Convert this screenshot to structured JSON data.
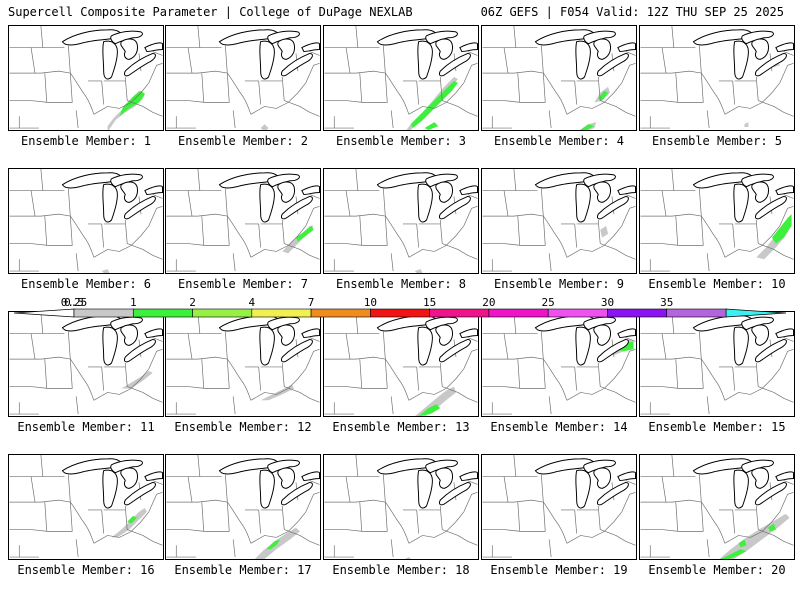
{
  "header": {
    "title": "Supercell Composite Parameter | College of DuPage NEXLAB",
    "valid": "06Z GEFS | F054 Valid: 12Z THU SEP 25 2025"
  },
  "colors": {
    "gray": "#c8c8c8",
    "green": "#3cf03c",
    "border": "#000000",
    "state": "#707070"
  },
  "legend": {
    "label_left": "0.25",
    "label_right": "35",
    "bins": [
      {
        "lo": "0.5",
        "color": "#c8c8c8"
      },
      {
        "lo": "1",
        "color": "#3cf03c"
      },
      {
        "lo": "2",
        "color": "#96f046"
      },
      {
        "lo": "4",
        "color": "#f0f050"
      },
      {
        "lo": "7",
        "color": "#f08c1e"
      },
      {
        "lo": "10",
        "color": "#f01414"
      },
      {
        "lo": "15",
        "color": "#f0148c"
      },
      {
        "lo": "20",
        "color": "#f014c8"
      },
      {
        "lo": "25",
        "color": "#f050f0"
      },
      {
        "lo": "30",
        "color": "#8c14f0"
      },
      {
        "lo": "35",
        "color": "#b464dc"
      }
    ],
    "cap_left_color": "#ffffff",
    "cap_right_color": "#3cf0f0"
  },
  "members": [
    {
      "label": "Ensemble Member: 1",
      "shading": [
        {
          "lvl": "gray",
          "pts": [
            [
              100,
              108
            ],
            [
              108,
              96
            ],
            [
              118,
              88
            ],
            [
              128,
              82
            ],
            [
              136,
              74
            ],
            [
              138,
              68
            ],
            [
              132,
              66
            ],
            [
              124,
              74
            ],
            [
              116,
              84
            ],
            [
              106,
              94
            ],
            [
              100,
              102
            ]
          ]
        },
        {
          "lvl": "green",
          "pts": [
            [
              112,
              92
            ],
            [
              122,
              84
            ],
            [
              132,
              78
            ],
            [
              138,
              70
            ],
            [
              134,
              66
            ],
            [
              126,
              72
            ],
            [
              116,
              82
            ]
          ]
        }
      ]
    },
    {
      "label": "Ensemble Member: 2",
      "shading": [
        {
          "lvl": "gray",
          "pts": [
            [
              96,
              104
            ],
            [
              100,
              100
            ],
            [
              104,
              104
            ],
            [
              100,
              108
            ]
          ]
        }
      ]
    },
    {
      "label": "Ensemble Member: 3",
      "shading": [
        {
          "lvl": "gray",
          "pts": [
            [
              86,
              108
            ],
            [
              98,
              96
            ],
            [
              110,
              84
            ],
            [
              120,
              72
            ],
            [
              130,
              62
            ],
            [
              136,
              54
            ],
            [
              132,
              52
            ],
            [
              122,
              62
            ],
            [
              112,
              74
            ],
            [
              100,
              88
            ],
            [
              88,
              100
            ],
            [
              82,
              108
            ]
          ]
        },
        {
          "lvl": "green",
          "pts": [
            [
              90,
              104
            ],
            [
              100,
              96
            ],
            [
              110,
              86
            ],
            [
              120,
              76
            ],
            [
              130,
              66
            ],
            [
              136,
              58
            ],
            [
              132,
              56
            ],
            [
              122,
              66
            ],
            [
              110,
              78
            ],
            [
              98,
              90
            ],
            [
              88,
              100
            ]
          ]
        },
        {
          "lvl": "green",
          "pts": [
            [
              102,
              104
            ],
            [
              112,
              98
            ],
            [
              116,
              102
            ],
            [
              106,
              106
            ]
          ]
        }
      ]
    },
    {
      "label": "Ensemble Member: 4",
      "shading": [
        {
          "lvl": "gray",
          "pts": [
            [
              96,
              108
            ],
            [
              108,
              100
            ],
            [
              116,
              98
            ],
            [
              114,
              104
            ],
            [
              104,
              108
            ]
          ]
        },
        {
          "lvl": "gray",
          "pts": [
            [
              114,
              78
            ],
            [
              120,
              68
            ],
            [
              128,
              62
            ],
            [
              130,
              68
            ],
            [
              122,
              76
            ]
          ]
        },
        {
          "lvl": "green",
          "pts": [
            [
              100,
              106
            ],
            [
              108,
              100
            ],
            [
              114,
              102
            ],
            [
              106,
              106
            ]
          ]
        },
        {
          "lvl": "green",
          "pts": [
            [
              118,
              74
            ],
            [
              124,
              66
            ],
            [
              128,
              68
            ],
            [
              122,
              76
            ]
          ]
        }
      ]
    },
    {
      "label": "Ensemble Member: 5",
      "shading": [
        {
          "lvl": "gray",
          "pts": [
            [
              134,
              38
            ],
            [
              140,
              34
            ],
            [
              142,
              40
            ],
            [
              136,
              42
            ]
          ]
        },
        {
          "lvl": "gray",
          "pts": [
            [
              106,
              100
            ],
            [
              110,
              98
            ],
            [
              110,
              103
            ],
            [
              106,
              103
            ]
          ]
        }
      ]
    },
    {
      "label": "Ensemble Member: 6",
      "shading": [
        {
          "lvl": "gray",
          "pts": [
            [
              94,
              104
            ],
            [
              100,
              102
            ],
            [
              102,
              106
            ],
            [
              96,
              106
            ]
          ]
        }
      ]
    },
    {
      "label": "Ensemble Member: 7",
      "shading": [
        {
          "lvl": "gray",
          "pts": [
            [
              118,
              84
            ],
            [
              128,
              74
            ],
            [
              138,
              66
            ],
            [
              146,
              58
            ],
            [
              150,
              58
            ],
            [
              144,
              66
            ],
            [
              134,
              76
            ],
            [
              124,
              86
            ]
          ]
        },
        {
          "lvl": "green",
          "pts": [
            [
              132,
              70
            ],
            [
              140,
              64
            ],
            [
              148,
              58
            ],
            [
              150,
              62
            ],
            [
              142,
              68
            ],
            [
              134,
              74
            ]
          ]
        }
      ]
    },
    {
      "label": "Ensemble Member: 8",
      "shading": [
        {
          "lvl": "gray",
          "pts": [
            [
              92,
              104
            ],
            [
              98,
              102
            ],
            [
              100,
              106
            ],
            [
              94,
              106
            ]
          ]
        }
      ]
    },
    {
      "label": "Ensemble Member: 9",
      "shading": [
        {
          "lvl": "gray",
          "pts": [
            [
              120,
              62
            ],
            [
              126,
              58
            ],
            [
              128,
              66
            ],
            [
              122,
              70
            ]
          ]
        }
      ]
    },
    {
      "label": "Ensemble Member: 10",
      "shading": [
        {
          "lvl": "gray",
          "pts": [
            [
              118,
              90
            ],
            [
              128,
              80
            ],
            [
              136,
              70
            ],
            [
              144,
              60
            ],
            [
              150,
              52
            ],
            [
              154,
              56
            ],
            [
              148,
              68
            ],
            [
              138,
              80
            ],
            [
              126,
              92
            ]
          ]
        },
        {
          "lvl": "green",
          "pts": [
            [
              134,
              70
            ],
            [
              142,
              60
            ],
            [
              150,
              50
            ],
            [
              154,
              46
            ],
            [
              154,
              58
            ],
            [
              146,
              70
            ],
            [
              138,
              76
            ]
          ]
        }
      ]
    },
    {
      "label": "Ensemble Member: 11",
      "shading": [
        {
          "lvl": "gray",
          "pts": [
            [
              114,
              78
            ],
            [
              124,
              72
            ],
            [
              134,
              66
            ],
            [
              142,
              60
            ],
            [
              146,
              62
            ],
            [
              136,
              70
            ],
            [
              124,
              78
            ]
          ]
        }
      ]
    },
    {
      "label": "Ensemble Member: 12",
      "shading": [
        {
          "lvl": "gray",
          "pts": [
            [
              96,
              90
            ],
            [
              108,
              84
            ],
            [
              120,
              78
            ],
            [
              128,
              74
            ],
            [
              130,
              78
            ],
            [
              118,
              84
            ],
            [
              104,
              90
            ]
          ]
        }
      ]
    },
    {
      "label": "Ensemble Member: 13",
      "shading": [
        {
          "lvl": "gray",
          "pts": [
            [
              90,
              108
            ],
            [
              102,
              98
            ],
            [
              114,
              88
            ],
            [
              124,
              80
            ],
            [
              132,
              76
            ],
            [
              134,
              82
            ],
            [
              124,
              90
            ],
            [
              112,
              100
            ],
            [
              100,
              108
            ]
          ]
        },
        {
          "lvl": "green",
          "pts": [
            [
              96,
              106
            ],
            [
              106,
              98
            ],
            [
              114,
              94
            ],
            [
              118,
              98
            ],
            [
              108,
              104
            ]
          ]
        }
      ]
    },
    {
      "label": "Ensemble Member: 14",
      "shading": [
        {
          "lvl": "gray",
          "pts": [
            [
              130,
              40
            ],
            [
              140,
              32
            ],
            [
              150,
              28
            ],
            [
              154,
              30
            ],
            [
              154,
              36
            ],
            [
              144,
              40
            ],
            [
              134,
              44
            ]
          ]
        },
        {
          "lvl": "green",
          "pts": [
            [
              136,
              38
            ],
            [
              146,
              32
            ],
            [
              154,
              30
            ],
            [
              154,
              38
            ],
            [
              144,
              40
            ]
          ]
        }
      ]
    },
    {
      "label": "Ensemble Member: 15",
      "shading": []
    },
    {
      "label": "Ensemble Member: 16",
      "shading": [
        {
          "lvl": "gray",
          "pts": [
            [
              104,
              84
            ],
            [
              114,
              76
            ],
            [
              124,
              66
            ],
            [
              132,
              58
            ],
            [
              138,
              54
            ],
            [
              140,
              58
            ],
            [
              132,
              66
            ],
            [
              122,
              76
            ],
            [
              110,
              84
            ]
          ]
        },
        {
          "lvl": "green",
          "pts": [
            [
              120,
              68
            ],
            [
              126,
              62
            ],
            [
              130,
              64
            ],
            [
              124,
              70
            ]
          ]
        }
      ]
    },
    {
      "label": "Ensemble Member: 17",
      "shading": [
        {
          "lvl": "gray",
          "pts": [
            [
              88,
              108
            ],
            [
              98,
              98
            ],
            [
              110,
              88
            ],
            [
              122,
              80
            ],
            [
              132,
              74
            ],
            [
              136,
              78
            ],
            [
              126,
              86
            ],
            [
              112,
              96
            ],
            [
              100,
              106
            ]
          ]
        },
        {
          "lvl": "green",
          "pts": [
            [
              102,
              96
            ],
            [
              110,
              88
            ],
            [
              116,
              86
            ],
            [
              112,
              92
            ],
            [
              106,
              96
            ]
          ]
        }
      ]
    },
    {
      "label": "Ensemble Member: 18",
      "shading": [
        {
          "lvl": "gray",
          "pts": [
            [
              78,
              108
            ],
            [
              86,
              104
            ],
            [
              90,
              108
            ]
          ]
        }
      ]
    },
    {
      "label": "Ensemble Member: 19",
      "shading": []
    },
    {
      "label": "Ensemble Member: 20",
      "shading": [
        {
          "lvl": "gray",
          "pts": [
            [
              78,
              108
            ],
            [
              92,
              96
            ],
            [
              108,
              84
            ],
            [
              124,
              74
            ],
            [
              138,
              66
            ],
            [
              148,
              60
            ],
            [
              152,
              64
            ],
            [
              140,
              74
            ],
            [
              124,
              86
            ],
            [
              108,
              98
            ],
            [
              92,
              108
            ]
          ]
        },
        {
          "lvl": "green",
          "pts": [
            [
              78,
              108
            ],
            [
              90,
              102
            ],
            [
              102,
              96
            ],
            [
              108,
              98
            ],
            [
              96,
              104
            ],
            [
              84,
              108
            ]
          ]
        },
        {
          "lvl": "green",
          "pts": [
            [
              100,
              90
            ],
            [
              106,
              86
            ],
            [
              108,
              92
            ],
            [
              102,
              94
            ]
          ]
        },
        {
          "lvl": "green",
          "pts": [
            [
              130,
              74
            ],
            [
              136,
              70
            ],
            [
              138,
              76
            ],
            [
              132,
              78
            ]
          ]
        }
      ]
    }
  ]
}
